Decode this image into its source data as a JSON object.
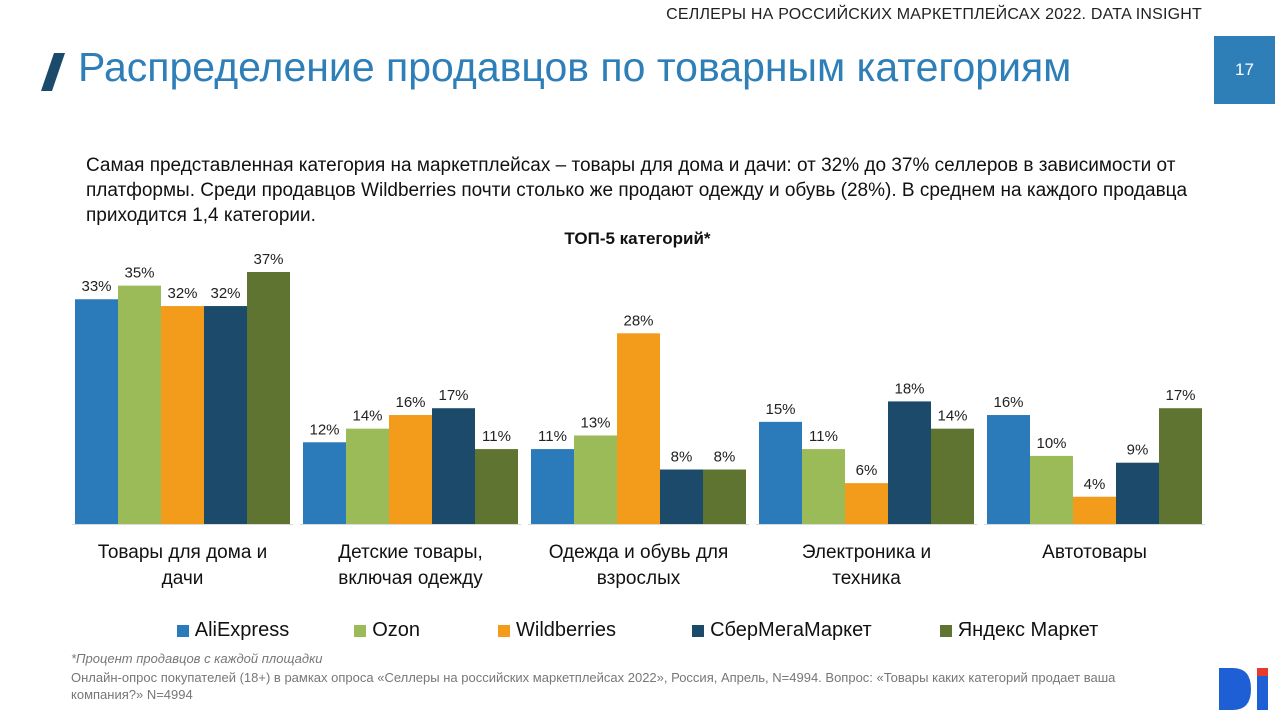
{
  "header": {
    "tag": "СЕЛЛЕРЫ НА РОССИЙСКИХ МАРКЕТПЛЕЙСАХ 2022. DATA INSIGHT",
    "page_number": "17"
  },
  "title": "Распределение продавцов по товарным категориям",
  "intro": "Самая представленная категория на маркетплейсах – товары для дома и дачи: от 32% до 37% селлеров в зависимости от платформы. Среди продавцов Wildberries почти столько же продают одежду и обувь (28%). В среднем на каждого продавца приходится 1,4 категории.",
  "footnote": "*Процент продавцов с каждой площадки",
  "source": "Онлайн-опрос покупателей (18+) в рамках опроса «Селлеры на российских маркетплейсах 2022», Россия, Апрель, N=4994. Вопрос: «Товары каких категорий продает ваша компания?» N=4994",
  "logo": {
    "icon": "data-insight-logo",
    "colors": [
      "#1f5fd6",
      "#e8392d"
    ]
  },
  "chart_data": {
    "type": "bar",
    "title": "ТОП-5 категорий*",
    "categories": [
      [
        "Товары для дома и",
        "дачи"
      ],
      [
        "Детские товары,",
        "включая одежду"
      ],
      [
        "Одежда и обувь для",
        "взрослых"
      ],
      [
        "Электроника и",
        "техника"
      ],
      [
        "Автотовары"
      ]
    ],
    "series": [
      {
        "name": "AliExpress",
        "color": "#2b7bba",
        "values": [
          33,
          12,
          11,
          15,
          16
        ]
      },
      {
        "name": "Ozon",
        "color": "#9bbb59",
        "values": [
          35,
          14,
          13,
          11,
          10
        ]
      },
      {
        "name": "Wildberries",
        "color": "#f39c1b",
        "values": [
          32,
          16,
          28,
          6,
          4
        ]
      },
      {
        "name": "СберМегаМаркет",
        "color": "#1b4a6b",
        "values": [
          32,
          17,
          8,
          18,
          9
        ]
      },
      {
        "name": "Яндекс Маркет",
        "color": "#5e7430",
        "values": [
          37,
          11,
          8,
          14,
          17
        ]
      }
    ],
    "value_suffix": "%",
    "ylim": [
      0,
      37
    ],
    "grid": false,
    "legend_position": "bottom"
  }
}
